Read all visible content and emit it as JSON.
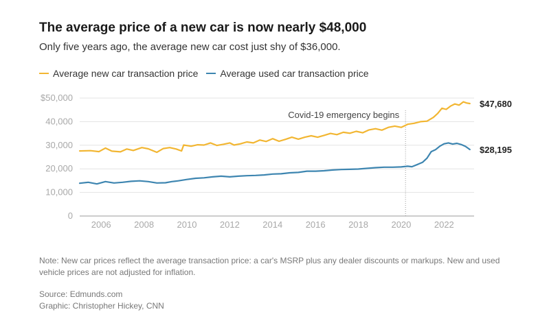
{
  "header": {
    "title": "The average price of a new car is now nearly $48,000",
    "subtitle": "Only five years ago, the average new car cost just shy of $36,000."
  },
  "legend": {
    "items": [
      {
        "label": "Average new car transaction price",
        "color": "#f2b632"
      },
      {
        "label": "Average used car transaction price",
        "color": "#3d85b0"
      }
    ]
  },
  "chart_data": {
    "type": "line",
    "title": "The average price of a new car is now nearly $48,000",
    "xlabel": "",
    "ylabel": "",
    "xlim": [
      2005.0,
      2023.4
    ],
    "ylim": [
      0,
      50000
    ],
    "grid": true,
    "y_ticks": [
      0,
      10000,
      20000,
      30000,
      40000,
      50000
    ],
    "y_tick_labels": [
      "0",
      "10,000",
      "20,000",
      "30,000",
      "40,000",
      "$50,000"
    ],
    "x_ticks": [
      2006,
      2008,
      2010,
      2012,
      2014,
      2016,
      2018,
      2020,
      2022
    ],
    "x_tick_labels": [
      "2006",
      "2008",
      "2010",
      "2012",
      "2014",
      "2016",
      "2018",
      "2020",
      "2022"
    ],
    "series": [
      {
        "name": "Average new car transaction price",
        "color": "#f2b632",
        "end_label": "$47,680",
        "points": [
          [
            2005.0,
            27600
          ],
          [
            2005.5,
            27700
          ],
          [
            2005.9,
            27300
          ],
          [
            2006.2,
            28800
          ],
          [
            2006.5,
            27500
          ],
          [
            2006.9,
            27200
          ],
          [
            2007.2,
            28400
          ],
          [
            2007.5,
            27800
          ],
          [
            2007.9,
            29000
          ],
          [
            2008.2,
            28500
          ],
          [
            2008.6,
            27000
          ],
          [
            2008.9,
            28600
          ],
          [
            2009.2,
            29000
          ],
          [
            2009.5,
            28400
          ],
          [
            2009.75,
            27600
          ],
          [
            2009.85,
            30100
          ],
          [
            2010.2,
            29600
          ],
          [
            2010.5,
            30200
          ],
          [
            2010.8,
            30100
          ],
          [
            2011.1,
            31000
          ],
          [
            2011.4,
            29900
          ],
          [
            2011.7,
            30400
          ],
          [
            2012.0,
            31000
          ],
          [
            2012.2,
            30100
          ],
          [
            2012.5,
            30600
          ],
          [
            2012.8,
            31400
          ],
          [
            2013.1,
            31000
          ],
          [
            2013.4,
            32200
          ],
          [
            2013.7,
            31600
          ],
          [
            2014.0,
            32800
          ],
          [
            2014.3,
            31700
          ],
          [
            2014.6,
            32500
          ],
          [
            2014.9,
            33400
          ],
          [
            2015.2,
            32600
          ],
          [
            2015.5,
            33400
          ],
          [
            2015.8,
            34000
          ],
          [
            2016.1,
            33400
          ],
          [
            2016.4,
            34200
          ],
          [
            2016.7,
            35000
          ],
          [
            2017.0,
            34500
          ],
          [
            2017.3,
            35500
          ],
          [
            2017.6,
            35100
          ],
          [
            2017.9,
            35900
          ],
          [
            2018.2,
            35300
          ],
          [
            2018.5,
            36500
          ],
          [
            2018.8,
            37000
          ],
          [
            2019.1,
            36400
          ],
          [
            2019.4,
            37600
          ],
          [
            2019.7,
            38100
          ],
          [
            2020.0,
            37600
          ],
          [
            2020.3,
            38900
          ],
          [
            2020.6,
            39300
          ],
          [
            2020.9,
            40000
          ],
          [
            2021.2,
            40200
          ],
          [
            2021.5,
            41800
          ],
          [
            2021.7,
            43500
          ],
          [
            2021.9,
            45700
          ],
          [
            2022.1,
            45200
          ],
          [
            2022.3,
            46600
          ],
          [
            2022.5,
            47500
          ],
          [
            2022.7,
            47000
          ],
          [
            2022.9,
            48400
          ],
          [
            2023.05,
            47900
          ],
          [
            2023.2,
            47680
          ]
        ]
      },
      {
        "name": "Average used car transaction price",
        "color": "#3d85b0",
        "end_label": "$28,195",
        "points": [
          [
            2005.0,
            13900
          ],
          [
            2005.4,
            14300
          ],
          [
            2005.8,
            13600
          ],
          [
            2006.2,
            14600
          ],
          [
            2006.6,
            14000
          ],
          [
            2007.0,
            14300
          ],
          [
            2007.4,
            14700
          ],
          [
            2007.8,
            14900
          ],
          [
            2008.2,
            14600
          ],
          [
            2008.6,
            14000
          ],
          [
            2009.0,
            14100
          ],
          [
            2009.3,
            14600
          ],
          [
            2009.6,
            14900
          ],
          [
            2010.0,
            15500
          ],
          [
            2010.4,
            16000
          ],
          [
            2010.8,
            16200
          ],
          [
            2011.2,
            16600
          ],
          [
            2011.6,
            16900
          ],
          [
            2012.0,
            16600
          ],
          [
            2012.4,
            16900
          ],
          [
            2012.8,
            17100
          ],
          [
            2013.2,
            17200
          ],
          [
            2013.6,
            17400
          ],
          [
            2014.0,
            17800
          ],
          [
            2014.4,
            17900
          ],
          [
            2014.8,
            18300
          ],
          [
            2015.2,
            18500
          ],
          [
            2015.6,
            19000
          ],
          [
            2016.0,
            19000
          ],
          [
            2016.4,
            19200
          ],
          [
            2016.8,
            19500
          ],
          [
            2017.2,
            19700
          ],
          [
            2017.6,
            19800
          ],
          [
            2018.0,
            19900
          ],
          [
            2018.4,
            20200
          ],
          [
            2018.8,
            20500
          ],
          [
            2019.2,
            20700
          ],
          [
            2019.6,
            20700
          ],
          [
            2020.0,
            20800
          ],
          [
            2020.3,
            21100
          ],
          [
            2020.5,
            20900
          ],
          [
            2020.8,
            22000
          ],
          [
            2021.0,
            22800
          ],
          [
            2021.2,
            24500
          ],
          [
            2021.4,
            27300
          ],
          [
            2021.6,
            28100
          ],
          [
            2021.8,
            29600
          ],
          [
            2022.0,
            30600
          ],
          [
            2022.2,
            31000
          ],
          [
            2022.4,
            30500
          ],
          [
            2022.6,
            30800
          ],
          [
            2022.8,
            30300
          ],
          [
            2023.0,
            29500
          ],
          [
            2023.2,
            28195
          ]
        ]
      }
    ],
    "annotations": [
      {
        "type": "vertical-line",
        "x": 2020.2,
        "label": "Covid-19 emergency begins"
      }
    ]
  },
  "footer": {
    "note": "Note: New car prices reflect the average transaction price: a car's MSRP plus any dealer discounts or markups. New and used vehicle prices are not adjusted for inflation.",
    "source": "Source: Edmunds.com",
    "credit": "Graphic: Christopher Hickey, CNN"
  }
}
